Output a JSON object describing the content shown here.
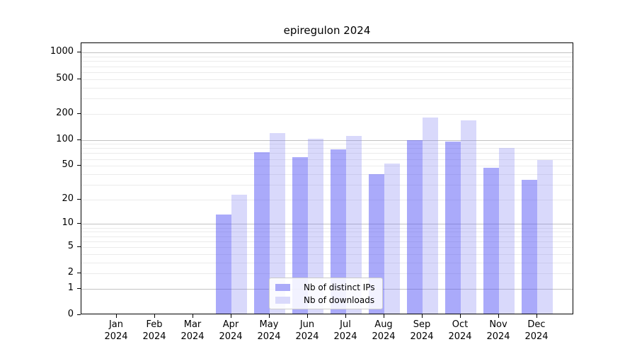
{
  "figure": {
    "background": "#ffffff"
  },
  "chart_data": {
    "type": "bar",
    "title": "epiregulon 2024",
    "categories": [
      "Jan 2024",
      "Feb 2024",
      "Mar 2024",
      "Apr 2024",
      "May 2024",
      "Jun 2024",
      "Jul 2024",
      "Aug 2024",
      "Sep 2024",
      "Oct 2024",
      "Nov 2024",
      "Dec 2024"
    ],
    "xtick_months": [
      "Jan",
      "Feb",
      "Mar",
      "Apr",
      "May",
      "Jun",
      "Jul",
      "Aug",
      "Sep",
      "Oct",
      "Nov",
      "Dec"
    ],
    "xtick_year": "2024",
    "series": [
      {
        "name": "Nb of distinct IPs",
        "slug": "distinct-ips",
        "legend_color": "#aaaaf9",
        "fill": "rgba(85,85,245,0.5)",
        "values": [
          0,
          0,
          0,
          13,
          72,
          63,
          78,
          40,
          100,
          95,
          47,
          34
        ]
      },
      {
        "name": "Nb of downloads",
        "slug": "downloads",
        "legend_color": "#d9d9fb",
        "fill": "rgba(128,128,242,0.3)",
        "values": [
          0,
          0,
          0,
          23,
          120,
          103,
          110,
          53,
          180,
          167,
          80,
          58
        ]
      }
    ],
    "xlabel": "",
    "ylabel": "",
    "yscale": "log1p",
    "ylim": [
      0,
      1285
    ],
    "yticks": [
      0,
      1,
      2,
      5,
      10,
      20,
      50,
      100,
      200,
      500,
      1000
    ],
    "yticks_major": [
      1,
      10,
      100,
      1000
    ],
    "minor_gridlines": [
      2,
      3,
      4,
      5,
      6,
      7,
      8,
      9,
      20,
      30,
      40,
      50,
      60,
      70,
      80,
      90,
      200,
      300,
      400,
      500,
      600,
      700,
      800,
      900
    ],
    "grid": true,
    "legend_position": "lower center"
  }
}
